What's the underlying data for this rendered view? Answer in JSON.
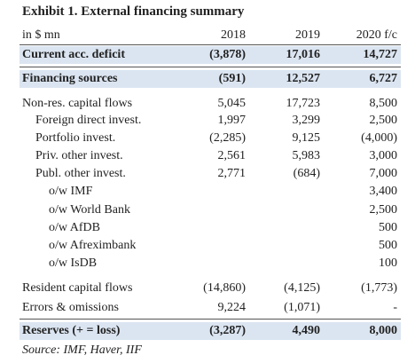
{
  "title": "Exhibit 1. External financing summary",
  "table": {
    "header": [
      "in $ mn",
      "2018",
      "2019",
      "2020 f/c"
    ],
    "rows": [
      [
        "Current acc. deficit",
        "(3,878)",
        "17,016",
        "14,727"
      ],
      [
        "Financing sources",
        "(591)",
        "12,527",
        "6,727"
      ],
      [
        "Non-res. capital flows",
        "5,045",
        "17,723",
        "8,500"
      ],
      [
        "Foreign direct invest.",
        "1,997",
        "3,299",
        "2,500"
      ],
      [
        "Portfolio invest.",
        "(2,285)",
        "9,125",
        "(4,000)"
      ],
      [
        "Priv. other invest.",
        "2,561",
        "5,983",
        "3,000"
      ],
      [
        "Publ. other invest.",
        "2,771",
        "(684)",
        "7,000"
      ],
      [
        "o/w IMF",
        null,
        null,
        "3,400"
      ],
      [
        "o/w World Bank",
        null,
        null,
        "2,500"
      ],
      [
        "o/w AfDB",
        null,
        null,
        "500"
      ],
      [
        "o/w Afreximbank",
        null,
        null,
        "500"
      ],
      [
        "o/w IsDB",
        null,
        null,
        "100"
      ],
      [
        "Resident capital flows",
        "(14,860)",
        "(4,125)",
        "(1,773)"
      ],
      [
        "Errors & omissions",
        "9,224",
        "(1,071)",
        "-"
      ],
      [
        "Reserves (+ = loss)",
        "(3,287)",
        "4,490",
        "8,000"
      ]
    ]
  },
  "source": "Source: IMF, Haver, IIF"
}
